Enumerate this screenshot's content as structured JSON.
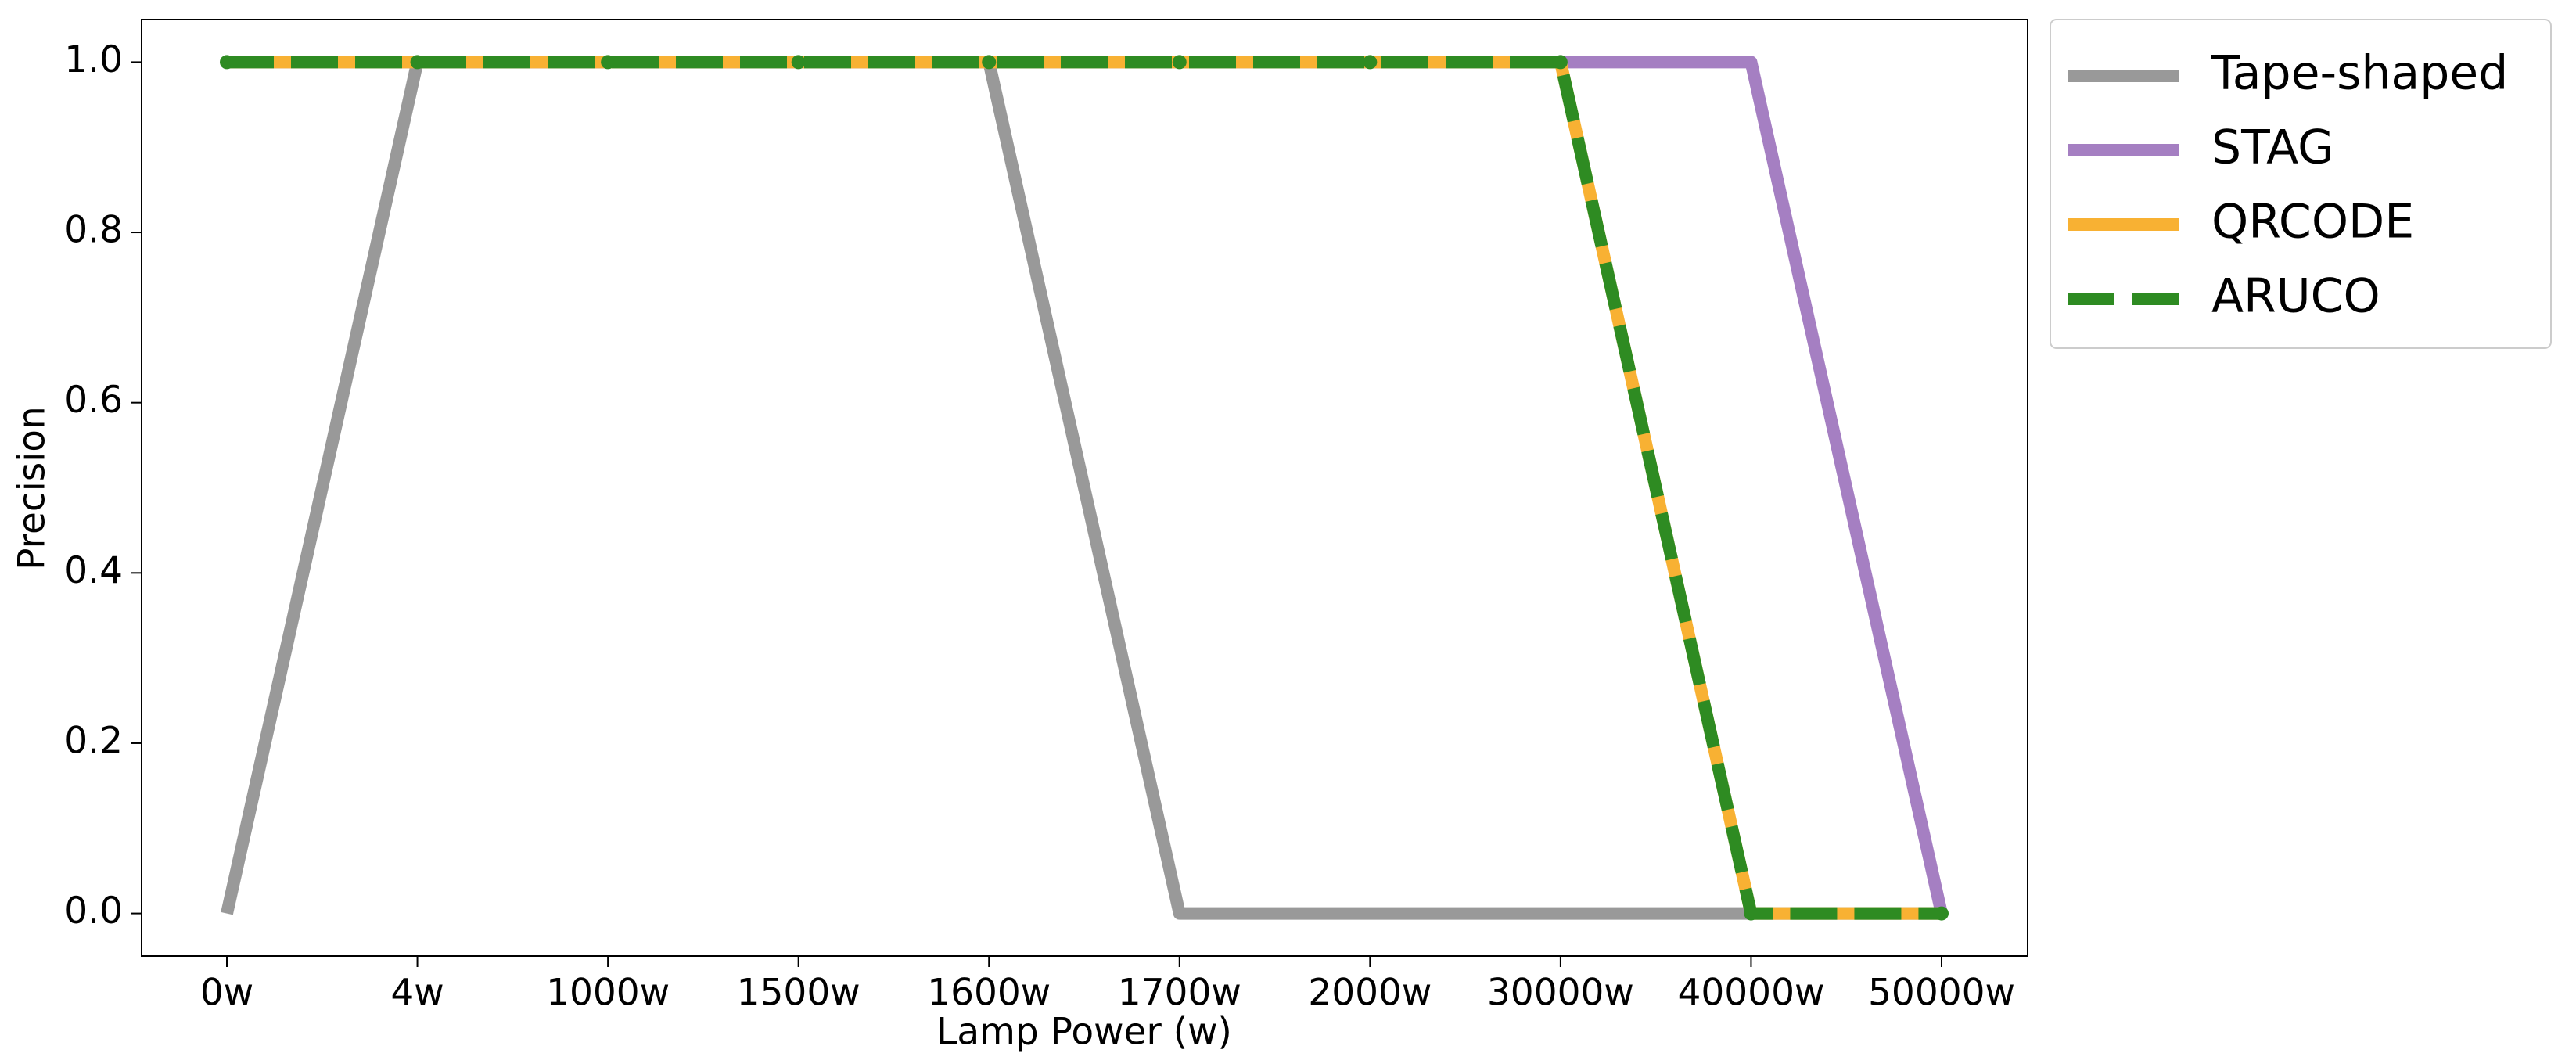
{
  "chart_data": {
    "type": "line",
    "x_label": "Lamp Power (w)",
    "y_label": "Precision",
    "categories": [
      "0w",
      "4w",
      "1000w",
      "1500w",
      "1600w",
      "1700w",
      "2000w",
      "30000w",
      "40000w",
      "50000w"
    ],
    "series": [
      {
        "name": "Tape-shaped",
        "color": "#999999",
        "linestyle": "solid",
        "values": [
          0,
          1,
          1,
          1,
          1,
          0,
          0,
          0,
          0,
          0
        ]
      },
      {
        "name": "STAG",
        "color": "#a57fc2",
        "linestyle": "solid",
        "values": [
          1,
          1,
          1,
          1,
          1,
          1,
          1,
          1,
          1,
          0
        ]
      },
      {
        "name": "QRCODE",
        "color": "#f8b133",
        "linestyle": "solid",
        "values": [
          1,
          1,
          1,
          1,
          1,
          1,
          1,
          1,
          0,
          0
        ]
      },
      {
        "name": "ARUCO",
        "color": "#2e8b22",
        "linestyle": "dashed",
        "marker": "o",
        "values": [
          1,
          1,
          1,
          1,
          1,
          1,
          1,
          1,
          0,
          0
        ]
      }
    ],
    "ylim": [
      -0.05,
      1.05
    ],
    "yticks": [
      {
        "value": 0,
        "label": "0.0"
      },
      0.2,
      0.4,
      0.6,
      0.8,
      {
        "value": 1,
        "label": "1.0"
      }
    ],
    "grid": false,
    "legend": "outside upper right"
  }
}
